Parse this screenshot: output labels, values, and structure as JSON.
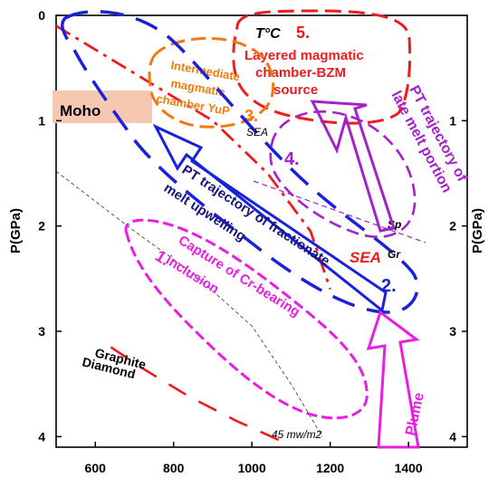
{
  "chart_data": {
    "type": "line",
    "x_ticks": [
      "600",
      "800",
      "1000",
      "1200",
      "1400"
    ],
    "y_ticks": [
      "0",
      "1",
      "2",
      "3",
      "4"
    ],
    "y_ticks_right": [
      "1",
      "2",
      "3",
      "4"
    ],
    "ylabel": "P(GPa)",
    "ylabel_right": "P(GPa)",
    "xlim": [
      500,
      1550
    ],
    "ylim": [
      4.1,
      0
    ],
    "grid": false,
    "annotations": {
      "temp_label": "T°C",
      "moho": "Moho",
      "layered": [
        "5.",
        "Layered magmatic",
        "chamber-BZM",
        "source"
      ],
      "intermediate": [
        "Intermediate",
        "magmatic",
        "chamber YuP",
        "3."
      ],
      "sea_top": "SEA",
      "late_melt": [
        "PT  trajectory of",
        "late melt portion"
      ],
      "num4": "4.",
      "fractionate": [
        "PT  trajectory of fractionate",
        "melt upwelling"
      ],
      "sea_red": "SEA",
      "num2": "2.",
      "sp": "Sp",
      "gr": "Gr",
      "capture": [
        "Capture of Cr-bearing",
        "inclusion"
      ],
      "num1": "1.",
      "graphite": "Graphite",
      "diamond": "Diamond",
      "plume": "Plume",
      "geotherm": "45 mw/m2"
    },
    "series": [
      {
        "values_xy": [
          [
            500,
            1.48
          ],
          [
            700,
            2.05
          ],
          [
            850,
            2.45
          ],
          [
            1000,
            2.95
          ],
          [
            1100,
            3.5
          ],
          [
            1180,
            4.0
          ]
        ]
      },
      {
        "values_xy": [
          [
            640,
            3.15
          ],
          [
            720,
            3.35
          ],
          [
            840,
            3.62
          ],
          [
            960,
            3.85
          ],
          [
            1080,
            4.05
          ]
        ]
      },
      {
        "values_xy": [
          [
            500,
            0.1
          ],
          [
            700,
            0.55
          ],
          [
            900,
            1.0
          ],
          [
            1040,
            1.5
          ],
          [
            1150,
            2.05
          ],
          [
            1200,
            2.6
          ]
        ]
      }
    ]
  },
  "colors": {
    "blue": "#1a22d9",
    "red": "#ee1c1c",
    "orange": "#f07a10",
    "purple": "#a322c9",
    "magenta": "#e81ee0",
    "navy": "#15157a",
    "moho": "#f6c7b1"
  }
}
